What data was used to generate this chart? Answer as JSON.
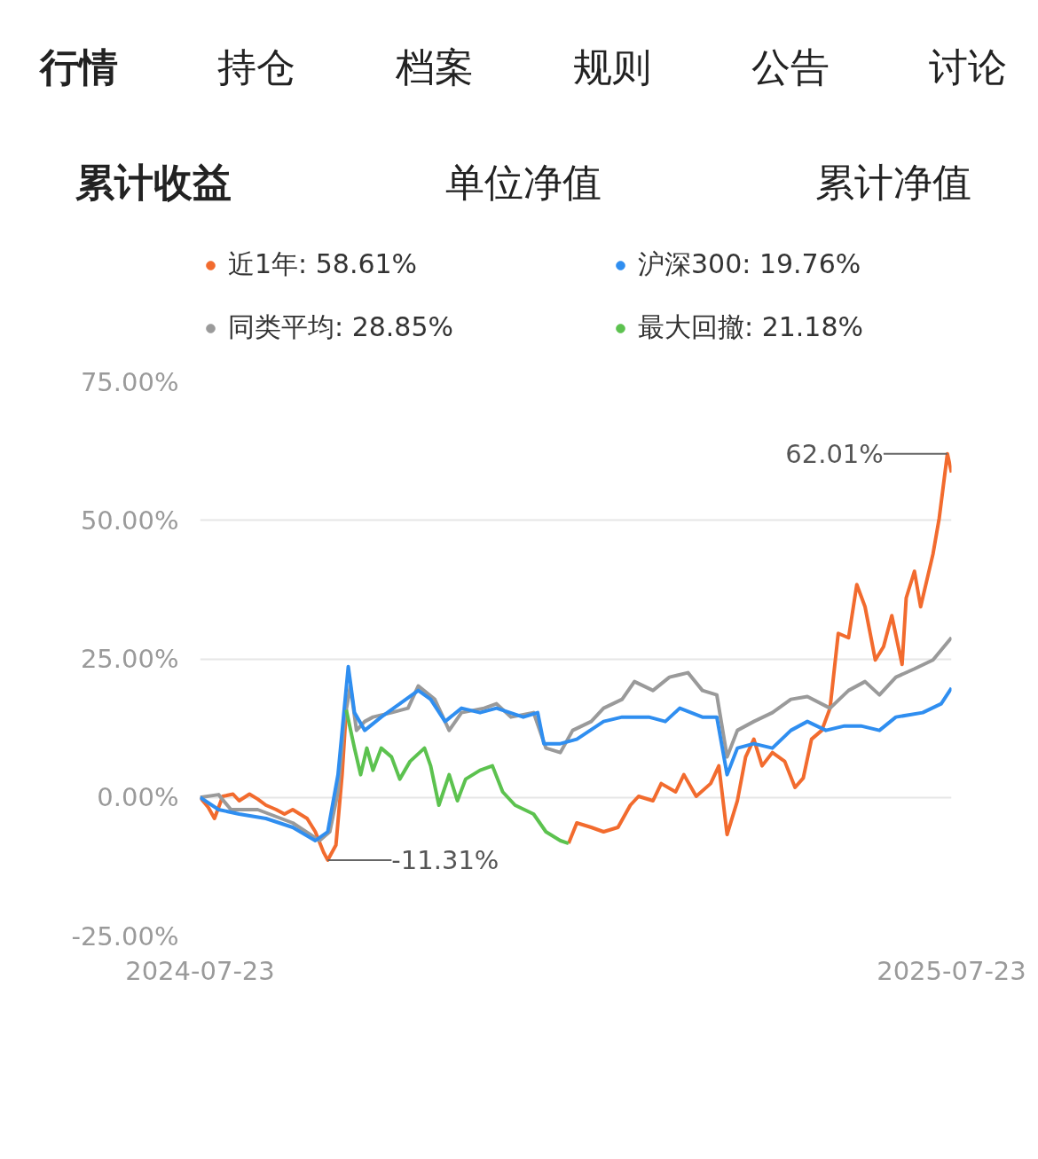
{
  "chart_data": {
    "type": "line",
    "title": "累计收益",
    "annotations": [
      "行情",
      "持仓",
      "档案",
      "规则",
      "公告",
      "讨论",
      "单位净值",
      "累计净值",
      {
        "text": "62.01%",
        "x": "2025-07-21",
        "y": 62.01
      },
      {
        "text": "-11.31%",
        "x": "2024-09-23",
        "y": -11.31
      }
    ],
    "xlim": [
      "2024-07-23",
      "2025-07-23"
    ],
    "xticks": [
      {
        "value": "2024-07-23",
        "label": "2024-07-23"
      },
      {
        "value": "2025-07-23",
        "label": "2025-07-23"
      }
    ],
    "ylim": [
      -25,
      75
    ],
    "yticks": [
      {
        "value": -25,
        "label": "-25.00%"
      },
      {
        "value": 0,
        "label": "0.00%"
      },
      {
        "value": 25,
        "label": "25.00%"
      },
      {
        "value": 50,
        "label": "50.00%"
      },
      {
        "value": 75,
        "label": "75.00%"
      }
    ],
    "grid": "y",
    "legend": "top",
    "line_style": "solid",
    "marker": "none",
    "series": [
      {
        "name": "近1年: 58.61%",
        "color": "#f26b2e",
        "x": [
          "2024-07-23",
          "2024-07-27",
          "2024-07-30",
          "2024-08-03",
          "2024-08-08",
          "2024-08-11",
          "2024-08-16",
          "2024-08-20",
          "2024-08-24",
          "2024-08-29",
          "2024-09-02",
          "2024-09-06",
          "2024-09-13",
          "2024-09-17",
          "2024-09-21",
          "2024-09-23",
          "2024-09-27",
          "2024-09-30",
          "2024-10-02",
          "2024-12-01",
          "2025-01-18",
          "2025-01-22",
          "2025-01-29",
          "2025-02-04",
          "2025-02-11",
          "2025-02-17",
          "2025-02-21",
          "2025-02-28",
          "2025-03-04",
          "2025-03-11",
          "2025-03-15",
          "2025-03-21",
          "2025-03-28",
          "2025-04-01",
          "2025-04-05",
          "2025-04-10",
          "2025-04-14",
          "2025-04-18",
          "2025-04-22",
          "2025-04-27",
          "2025-05-03",
          "2025-05-08",
          "2025-05-12",
          "2025-05-16",
          "2025-05-21",
          "2025-05-25",
          "2025-05-29",
          "2025-06-03",
          "2025-06-07",
          "2025-06-11",
          "2025-06-16",
          "2025-06-20",
          "2025-06-24",
          "2025-06-29",
          "2025-07-01",
          "2025-07-05",
          "2025-07-08",
          "2025-07-14",
          "2025-07-17",
          "2025-07-21",
          "2025-07-23"
        ],
        "values": [
          0,
          -1.8,
          -3.8,
          0.2,
          0.6,
          -0.6,
          0.6,
          -0.3,
          -1.4,
          -2.2,
          -3.0,
          -2.2,
          -3.8,
          -6.2,
          -9.9,
          -11.31,
          -8.6,
          4.1,
          15.8,
          null,
          -8.3,
          -4.6,
          -5.4,
          -6.2,
          -5.4,
          -1.4,
          0.2,
          -0.6,
          2.5,
          1.0,
          4.1,
          0.2,
          2.5,
          5.7,
          -6.7,
          -0.6,
          7.3,
          10.5,
          5.7,
          8.1,
          6.5,
          1.8,
          3.5,
          10.5,
          12.1,
          16.1,
          29.6,
          28.8,
          38.4,
          34.4,
          24.8,
          27.2,
          32.8,
          24.0,
          36.0,
          40.8,
          34.4,
          43.9,
          50.3,
          62.01,
          58.61
        ]
      },
      {
        "name": "同类平均: 28.85%",
        "color": "#9a9a9a",
        "x": [
          "2024-07-23",
          "2024-08-01",
          "2024-08-07",
          "2024-08-20",
          "2024-09-06",
          "2024-09-19",
          "2024-09-24",
          "2024-09-28",
          "2024-10-01",
          "2024-10-04",
          "2024-10-07",
          "2024-10-11",
          "2024-10-15",
          "2024-10-24",
          "2024-11-01",
          "2024-11-06",
          "2024-11-14",
          "2024-11-21",
          "2024-11-27",
          "2024-12-08",
          "2024-12-14",
          "2024-12-21",
          "2025-01-01",
          "2025-01-07",
          "2025-01-14",
          "2025-01-20",
          "2025-01-29",
          "2025-02-04",
          "2025-02-13",
          "2025-02-19",
          "2025-02-28",
          "2025-03-08",
          "2025-03-17",
          "2025-03-24",
          "2025-03-31",
          "2025-04-05",
          "2025-04-10",
          "2025-04-18",
          "2025-04-27",
          "2025-05-06",
          "2025-05-14",
          "2025-05-25",
          "2025-06-03",
          "2025-06-11",
          "2025-06-18",
          "2025-06-26",
          "2025-07-05",
          "2025-07-14",
          "2025-07-23"
        ],
        "values": [
          0,
          0.5,
          -2.2,
          -2.2,
          -4.6,
          -7.8,
          -6.2,
          1.0,
          13.7,
          20.1,
          12.1,
          13.7,
          14.5,
          15.3,
          16.1,
          20.1,
          17.7,
          12.1,
          15.3,
          16.1,
          16.9,
          14.5,
          15.3,
          8.9,
          8.1,
          12.1,
          13.7,
          16.1,
          17.7,
          20.9,
          19.3,
          21.7,
          22.5,
          19.3,
          18.5,
          7.3,
          12.1,
          13.7,
          15.3,
          17.7,
          18.2,
          16.1,
          19.3,
          20.9,
          18.5,
          21.7,
          23.2,
          24.8,
          28.85
        ]
      },
      {
        "name": "沪深300: 19.76%",
        "color": "#2f8ef0",
        "x": [
          "2024-07-23",
          "2024-08-01",
          "2024-08-11",
          "2024-08-24",
          "2024-09-06",
          "2024-09-17",
          "2024-09-23",
          "2024-09-28",
          "2024-10-03",
          "2024-10-06",
          "2024-10-11",
          "2024-10-19",
          "2024-10-28",
          "2024-11-06",
          "2024-11-12",
          "2024-11-19",
          "2024-11-27",
          "2024-12-06",
          "2024-12-14",
          "2024-12-27",
          "2025-01-03",
          "2025-01-06",
          "2025-01-14",
          "2025-01-22",
          "2025-02-04",
          "2025-02-13",
          "2025-02-26",
          "2025-03-06",
          "2025-03-13",
          "2025-03-24",
          "2025-03-31",
          "2025-04-05",
          "2025-04-10",
          "2025-04-18",
          "2025-04-27",
          "2025-05-06",
          "2025-05-14",
          "2025-05-23",
          "2025-06-01",
          "2025-06-09",
          "2025-06-18",
          "2025-06-26",
          "2025-07-09",
          "2025-07-18",
          "2025-07-23"
        ],
        "values": [
          0,
          -2.2,
          -3.0,
          -3.8,
          -5.4,
          -7.8,
          -6.2,
          4.1,
          23.6,
          15.3,
          12.1,
          14.5,
          16.9,
          19.3,
          17.7,
          13.7,
          16.1,
          15.3,
          16.1,
          14.5,
          15.3,
          9.7,
          9.7,
          10.5,
          13.7,
          14.5,
          14.5,
          13.7,
          16.1,
          14.5,
          14.5,
          4.1,
          8.9,
          9.7,
          8.9,
          12.1,
          13.7,
          12.1,
          12.9,
          12.9,
          12.1,
          14.5,
          15.3,
          16.9,
          19.76
        ]
      },
      {
        "name": "最大回撤: 21.18%",
        "color": "#5cc24f",
        "x": [
          "2024-10-02",
          "2024-10-06",
          "2024-10-09",
          "2024-10-12",
          "2024-10-15",
          "2024-10-19",
          "2024-10-24",
          "2024-10-28",
          "2024-11-02",
          "2024-11-09",
          "2024-11-12",
          "2024-11-16",
          "2024-11-21",
          "2024-11-25",
          "2024-11-29",
          "2024-12-06",
          "2024-12-12",
          "2024-12-17",
          "2024-12-23",
          "2025-01-01",
          "2025-01-07",
          "2025-01-14",
          "2025-01-18"
        ],
        "values": [
          15.8,
          8.9,
          4.1,
          8.9,
          4.9,
          8.9,
          7.3,
          3.3,
          6.5,
          8.9,
          5.7,
          -1.4,
          4.1,
          -0.6,
          3.3,
          4.9,
          5.7,
          1.0,
          -1.4,
          -3.0,
          -6.2,
          -7.8,
          -8.3
        ]
      }
    ]
  }
}
